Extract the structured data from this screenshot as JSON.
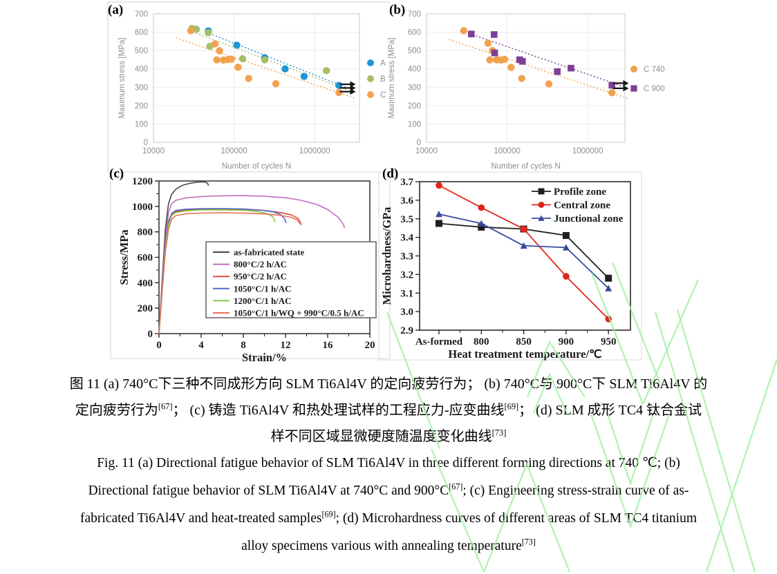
{
  "chart_data": [
    {
      "id": "a",
      "label": "(a)",
      "type": "scatter",
      "xscale": "log",
      "xlabel": "Number of cycles N",
      "ylabel": "Maximum stress [MPa]",
      "xlim": [
        10000,
        3600000
      ],
      "ylim": [
        0,
        700
      ],
      "xticks": [
        10000,
        100000,
        1000000
      ],
      "yticks": [
        0,
        100,
        200,
        300,
        400,
        500,
        600,
        700
      ],
      "legend_position": "right",
      "series": [
        {
          "name": "A",
          "color": "#2095d3",
          "marker": "circle",
          "points": [
            [
              48000,
              607
            ],
            [
              108000,
              529
            ],
            [
              240000,
              461
            ],
            [
              430000,
              400
            ],
            [
              740000,
              359
            ],
            [
              2000000,
              310
            ]
          ]
        },
        {
          "name": "B",
          "color": "#a6bf64",
          "marker": "circle",
          "points": [
            [
              30000,
              620
            ],
            [
              34000,
              616
            ],
            [
              48000,
              597
            ],
            [
              50000,
              523
            ],
            [
              128000,
              455
            ],
            [
              240000,
              449
            ],
            [
              1400000,
              390
            ]
          ]
        },
        {
          "name": "C",
          "color": "#f2a14f",
          "marker": "circle",
          "points": [
            [
              29000,
              608
            ],
            [
              58000,
              536
            ],
            [
              66000,
              499
            ],
            [
              61000,
              449
            ],
            [
              74000,
              448
            ],
            [
              84000,
              451
            ],
            [
              93000,
              453
            ],
            [
              112000,
              409
            ],
            [
              152000,
              348
            ],
            [
              330000,
              319
            ],
            [
              2000000,
              271
            ]
          ]
        }
      ],
      "trendlines": [
        {
          "color": "#2095d3",
          "points": [
            [
              45000,
              600
            ],
            [
              2600000,
              295
            ]
          ]
        },
        {
          "color": "#a6bf64",
          "points": [
            [
              28000,
              608
            ],
            [
              2600000,
              285
            ]
          ]
        },
        {
          "color": "#f2a14f",
          "points": [
            [
              19000,
              568
            ],
            [
              3200000,
              240
            ]
          ]
        }
      ],
      "runout_arrows": [
        [
          2050000,
          316
        ],
        [
          2050000,
          296
        ],
        [
          2050000,
          276
        ]
      ]
    },
    {
      "id": "b",
      "label": "(b)",
      "type": "scatter",
      "xscale": "log",
      "xlabel": "Number of cycles N",
      "ylabel": "Maximum stress [MPa]",
      "xlim": [
        10000,
        2900000
      ],
      "ylim": [
        0,
        700
      ],
      "xticks": [
        10000,
        100000,
        1000000
      ],
      "yticks": [
        0,
        100,
        200,
        300,
        400,
        500,
        600,
        700
      ],
      "legend_position": "right",
      "series": [
        {
          "name": "C 740",
          "color": "#f2a14f",
          "marker": "circle",
          "points": [
            [
              29000,
              608
            ],
            [
              58000,
              540
            ],
            [
              66000,
              500
            ],
            [
              61000,
              449
            ],
            [
              74000,
              449
            ],
            [
              84000,
              448
            ],
            [
              93000,
              452
            ],
            [
              112000,
              408
            ],
            [
              152000,
              348
            ],
            [
              330000,
              318
            ],
            [
              2000000,
              270
            ]
          ]
        },
        {
          "name": "C 900",
          "color": "#7d3f98",
          "marker": "square",
          "points": [
            [
              36000,
              590
            ],
            [
              69000,
              587
            ],
            [
              70000,
              487
            ],
            [
              143000,
              450
            ],
            [
              155000,
              441
            ],
            [
              420000,
              385
            ],
            [
              620000,
              404
            ],
            [
              2000000,
              311
            ]
          ]
        }
      ],
      "trendlines": [
        {
          "color": "#7d3f98",
          "points": [
            [
              34000,
              592
            ],
            [
              2600000,
              308
            ]
          ]
        },
        {
          "color": "#f2a14f",
          "points": [
            [
              19000,
              560
            ],
            [
              3200000,
              238
            ]
          ]
        }
      ],
      "runout_arrows": [
        [
          2050000,
          322
        ],
        [
          2050000,
          294
        ]
      ]
    },
    {
      "id": "c",
      "label": "(c)",
      "type": "line",
      "xlabel": "Strain/%",
      "ylabel": "Stress/MPa",
      "xlim": [
        0,
        20
      ],
      "ylim": [
        0,
        1200
      ],
      "xticks": [
        0,
        4,
        8,
        12,
        16,
        20
      ],
      "yticks": [
        0,
        200,
        400,
        600,
        800,
        1000,
        1200
      ],
      "legend_position": "inside-box",
      "series": [
        {
          "name": "as-fabricated state",
          "color": "#474747",
          "points": [
            [
              0,
              0
            ],
            [
              0.3,
              420
            ],
            [
              0.6,
              820
            ],
            [
              0.9,
              1020
            ],
            [
              1.2,
              1095
            ],
            [
              1.6,
              1135
            ],
            [
              2.2,
              1165
            ],
            [
              3.0,
              1183
            ],
            [
              3.8,
              1192
            ],
            [
              4.3,
              1192
            ],
            [
              4.6,
              1183
            ],
            [
              4.7,
              1163
            ]
          ]
        },
        {
          "name": "800°C/2 h/AC",
          "color": "#c36bbf",
          "points": [
            [
              0,
              0
            ],
            [
              0.3,
              380
            ],
            [
              0.6,
              740
            ],
            [
              0.9,
              950
            ],
            [
              1.2,
              1022
            ],
            [
              1.6,
              1048
            ],
            [
              2.5,
              1066
            ],
            [
              4,
              1078
            ],
            [
              6,
              1084
            ],
            [
              8,
              1085
            ],
            [
              10,
              1080
            ],
            [
              12,
              1068
            ],
            [
              13.5,
              1048
            ],
            [
              15,
              1015
            ],
            [
              16,
              975
            ],
            [
              17,
              915
            ],
            [
              17.5,
              858
            ],
            [
              17.6,
              830
            ]
          ]
        },
        {
          "name": "950°C/2 h/AC",
          "color": "#d84b3a",
          "points": [
            [
              0,
              0
            ],
            [
              0.3,
              350
            ],
            [
              0.6,
              680
            ],
            [
              0.9,
              860
            ],
            [
              1.2,
              935
            ],
            [
              1.6,
              960
            ],
            [
              2.5,
              970
            ],
            [
              4,
              976
            ],
            [
              6,
              978
            ],
            [
              8,
              977
            ],
            [
              10,
              968
            ],
            [
              11.5,
              952
            ],
            [
              12.5,
              935
            ],
            [
              13.2,
              905
            ],
            [
              13.5,
              855
            ]
          ]
        },
        {
          "name": "1050°C/1 h/AC",
          "color": "#5165c8",
          "points": [
            [
              0,
              0
            ],
            [
              0.3,
              360
            ],
            [
              0.6,
              700
            ],
            [
              0.9,
              880
            ],
            [
              1.2,
              945
            ],
            [
              1.6,
              968
            ],
            [
              2.5,
              978
            ],
            [
              4,
              982
            ],
            [
              6,
              983
            ],
            [
              8,
              980
            ],
            [
              9.5,
              972
            ],
            [
              10.8,
              958
            ],
            [
              11.5,
              938
            ],
            [
              11.9,
              905
            ],
            [
              12.05,
              870
            ]
          ]
        },
        {
          "name": "1200°C/1 h/AC",
          "color": "#85c943",
          "points": [
            [
              0,
              0
            ],
            [
              0.3,
              345
            ],
            [
              0.6,
              670
            ],
            [
              0.9,
              855
            ],
            [
              1.2,
              928
            ],
            [
              1.6,
              952
            ],
            [
              2.5,
              965
            ],
            [
              4,
              972
            ],
            [
              6,
              973
            ],
            [
              8,
              969
            ],
            [
              9.3,
              960
            ],
            [
              10.2,
              945
            ],
            [
              10.8,
              920
            ],
            [
              11.0,
              878
            ]
          ]
        },
        {
          "name": "1050°C/1 h/WQ + 990°C/0.5 h/AC",
          "color": "#ea6f58",
          "points": [
            [
              0,
              0
            ],
            [
              0.3,
              330
            ],
            [
              0.6,
              640
            ],
            [
              0.9,
              820
            ],
            [
              1.2,
              900
            ],
            [
              1.6,
              928
            ],
            [
              2.5,
              942
            ],
            [
              4,
              948
            ],
            [
              6,
              950
            ],
            [
              8,
              948
            ],
            [
              10,
              941
            ],
            [
              11.5,
              930
            ],
            [
              12.5,
              915
            ],
            [
              13.1,
              895
            ],
            [
              13.45,
              858
            ]
          ]
        }
      ]
    },
    {
      "id": "d",
      "label": "(d)",
      "type": "line-marker",
      "xlabel": "Heat treatment temperature/℃",
      "ylabel": "Microhardness/GPa",
      "categories": [
        "As-formed",
        "800",
        "850",
        "900",
        "950"
      ],
      "ylim": [
        2.9,
        3.7
      ],
      "yticks": [
        "2.9",
        "3.0",
        "3.1",
        "3.2",
        "3.3",
        "3.4",
        "3.5",
        "3.6",
        "3.7"
      ],
      "legend_position": "top-right",
      "series": [
        {
          "name": "Profile zone",
          "color": "#1f1f1f",
          "marker": "square",
          "values": [
            3.475,
            3.455,
            3.445,
            3.41,
            3.18
          ]
        },
        {
          "name": "Central zone",
          "color": "#e1251c",
          "marker": "circle",
          "values": [
            3.68,
            3.56,
            3.445,
            3.19,
            2.96
          ]
        },
        {
          "name": "Junctional zone",
          "color": "#37499e",
          "marker": "triangle",
          "values": [
            3.525,
            3.475,
            3.355,
            3.345,
            3.125
          ]
        }
      ]
    }
  ],
  "captions": {
    "zh": [
      [
        {
          "t": "图 11 (a) 740°C下三种不同成形方向 SLM Ti6Al4V 的定向疲劳行为； (b) 740°C与 900°C下 SLM Ti6Al4V 的"
        }
      ],
      [
        {
          "t": "定向疲劳行为"
        },
        {
          "t": "[67]",
          "sup": true
        },
        {
          "t": "； (c) 铸造 Ti6Al4V 和热处理试样的工程应力-应变曲线"
        },
        {
          "t": "[69]",
          "sup": true
        },
        {
          "t": "； (d) SLM 成形 TC4 钛合金试"
        }
      ],
      [
        {
          "t": "样不同区域显微硬度随温度变化曲线"
        },
        {
          "t": "[73]",
          "sup": true
        }
      ]
    ],
    "en": [
      [
        {
          "t": "Fig. 11 (a) Directional fatigue behavior of SLM Ti6Al4V in three different forming directions at 740 ℃; (b)"
        }
      ],
      [
        {
          "t": "Directional fatigue behavior of SLM Ti6Al4V at 740°C and 900°C"
        },
        {
          "t": "[67]",
          "sup": true
        },
        {
          "t": "; (c) Engineering stress-strain curve of as-"
        }
      ],
      [
        {
          "t": "fabricated Ti6Al4V and heat-treated samples"
        },
        {
          "t": "[69]",
          "sup": true
        },
        {
          "t": "; (d) Microhardness curves of different areas of SLM TC4 titanium"
        }
      ],
      [
        {
          "t": "alloy specimens various with annealing temperature"
        },
        {
          "t": "[73]",
          "sup": true
        }
      ]
    ]
  },
  "colors": {
    "series_a_blue": "#2095d3",
    "series_b_green": "#a6bf64",
    "series_c_orange": "#f2a14f",
    "series_c900_purple": "#7d3f98",
    "watermark_green": "#9cef9c",
    "axis_gray_text": "#8d8d8d",
    "gridline": "#ebebeb"
  }
}
